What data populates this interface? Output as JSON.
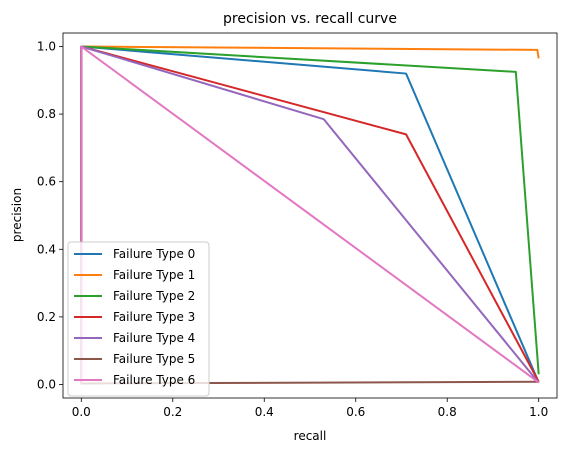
{
  "chart_data": {
    "type": "line",
    "title": "precision vs. recall curve",
    "xlabel": "recall",
    "ylabel": "precision",
    "xlim": [
      -0.04,
      1.04
    ],
    "ylim": [
      -0.04,
      1.04
    ],
    "xticks": [
      "0.0",
      "0.2",
      "0.4",
      "0.6",
      "0.8",
      "1.0"
    ],
    "yticks": [
      "0.0",
      "0.2",
      "0.4",
      "0.6",
      "0.8",
      "1.0"
    ],
    "grid": false,
    "legend_position": "lower-left",
    "series": [
      {
        "name": "Failure Type 0",
        "color": "#1f77b4",
        "x": [
          0,
          0,
          0.71,
          1.0
        ],
        "y": [
          0.003,
          1.0,
          0.92,
          0.006
        ]
      },
      {
        "name": "Failure Type 1",
        "color": "#ff7f0e",
        "x": [
          0,
          0,
          0.997,
          1.0
        ],
        "y": [
          0.003,
          1.0,
          0.99,
          0.965
        ]
      },
      {
        "name": "Failure Type 2",
        "color": "#2ca02c",
        "x": [
          0,
          0,
          0.95,
          1.0
        ],
        "y": [
          0.003,
          1.0,
          0.925,
          0.03
        ]
      },
      {
        "name": "Failure Type 3",
        "color": "#d62728",
        "x": [
          0,
          0,
          0.71,
          1.0
        ],
        "y": [
          0.003,
          1.0,
          0.74,
          0.008
        ]
      },
      {
        "name": "Failure Type 4",
        "color": "#9467bd",
        "x": [
          0,
          0,
          0.53,
          1.0
        ],
        "y": [
          0.003,
          1.0,
          0.785,
          0.005
        ]
      },
      {
        "name": "Failure Type 5",
        "color": "#8c564b",
        "x": [
          0,
          0,
          1.0
        ],
        "y": [
          1.0,
          0.003,
          0.008
        ]
      },
      {
        "name": "Failure Type 6",
        "color": "#e377c2",
        "x": [
          0,
          0,
          1.0
        ],
        "y": [
          0.003,
          1.0,
          0.006
        ]
      }
    ]
  }
}
